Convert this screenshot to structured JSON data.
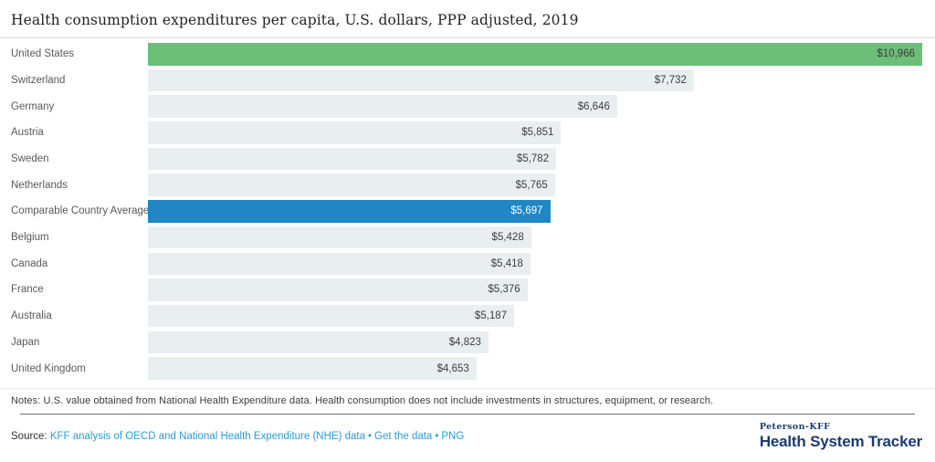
{
  "title": "Health consumption expenditures per capita, U.S. dollars, PPP adjusted, 2019",
  "chart_data": {
    "type": "bar",
    "orientation": "horizontal",
    "xlim": [
      0,
      10966
    ],
    "grid": false,
    "legend": false,
    "categories": [
      "United States",
      "Switzerland",
      "Germany",
      "Austria",
      "Sweden",
      "Netherlands",
      "Comparable Country Average",
      "Belgium",
      "Canada",
      "France",
      "Australia",
      "Japan",
      "United Kingdom"
    ],
    "values": [
      10966,
      7732,
      6646,
      5851,
      5782,
      5765,
      5697,
      5428,
      5418,
      5376,
      5187,
      4823,
      4653
    ],
    "rows": [
      {
        "label": "United States",
        "value": 10966,
        "display": "$10,966",
        "style": "us"
      },
      {
        "label": "Switzerland",
        "value": 7732,
        "display": "$7,732",
        "style": "default"
      },
      {
        "label": "Germany",
        "value": 6646,
        "display": "$6,646",
        "style": "default"
      },
      {
        "label": "Austria",
        "value": 5851,
        "display": "$5,851",
        "style": "default"
      },
      {
        "label": "Sweden",
        "value": 5782,
        "display": "$5,782",
        "style": "default"
      },
      {
        "label": "Netherlands",
        "value": 5765,
        "display": "$5,765",
        "style": "default"
      },
      {
        "label": "Comparable Country Average",
        "value": 5697,
        "display": "$5,697",
        "style": "average"
      },
      {
        "label": "Belgium",
        "value": 5428,
        "display": "$5,428",
        "style": "default"
      },
      {
        "label": "Canada",
        "value": 5418,
        "display": "$5,418",
        "style": "default"
      },
      {
        "label": "France",
        "value": 5376,
        "display": "$5,376",
        "style": "default"
      },
      {
        "label": "Australia",
        "value": 5187,
        "display": "$5,187",
        "style": "default"
      },
      {
        "label": "Japan",
        "value": 4823,
        "display": "$4,823",
        "style": "default"
      },
      {
        "label": "United Kingdom",
        "value": 4653,
        "display": "$4,653",
        "style": "default"
      }
    ],
    "colors": {
      "highlight_us": "#6cbe78",
      "highlight_average": "#2086c4",
      "default_bar": "#e9eef1",
      "value_text": "#3d3d3d",
      "value_text_on_average": "#ffffff"
    }
  },
  "notes": "Notes: U.S. value obtained from National Health Expenditure data. Health consumption does not include investments in structures, equipment, or research.",
  "source": {
    "prefix": "Source: ",
    "links": [
      {
        "text": "KFF analysis of OECD and National Health Expenditure (NHE) data"
      },
      {
        "text": "Get the data"
      },
      {
        "text": "PNG"
      }
    ],
    "separator": "•",
    "link_color": "#2b9bd7"
  },
  "branding": {
    "line1": "Peterson-KFF",
    "line2": "Health System Tracker",
    "color": "#1b3c6e"
  }
}
